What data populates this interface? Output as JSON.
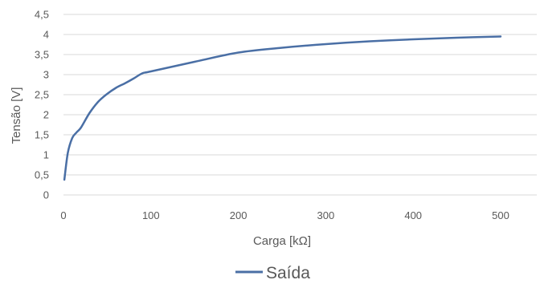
{
  "chart_data": {
    "type": "line",
    "xlabel": "Carga [kΩ]",
    "ylabel": "Tensão [V]",
    "xlim": [
      0,
      500
    ],
    "ylim": [
      0,
      4.5
    ],
    "x_ticks": [
      "0",
      "100",
      "200",
      "300",
      "400",
      "500"
    ],
    "y_ticks": [
      "0",
      "0,5",
      "1",
      "1,5",
      "2",
      "2,5",
      "3",
      "3,5",
      "4",
      "4,5"
    ],
    "grid": "horizontal",
    "legend_position": "bottom",
    "series": [
      {
        "name": "Saída",
        "color": "#4a6fa5",
        "x": [
          1,
          5,
          10,
          15,
          20,
          30,
          40,
          50,
          60,
          70,
          80,
          90,
          100,
          150,
          200,
          250,
          300,
          350,
          400,
          450,
          500
        ],
        "y": [
          0.38,
          1.05,
          1.42,
          1.56,
          1.68,
          2.05,
          2.33,
          2.52,
          2.67,
          2.78,
          2.9,
          3.03,
          3.08,
          3.32,
          3.55,
          3.67,
          3.76,
          3.83,
          3.88,
          3.92,
          3.95
        ]
      }
    ]
  }
}
